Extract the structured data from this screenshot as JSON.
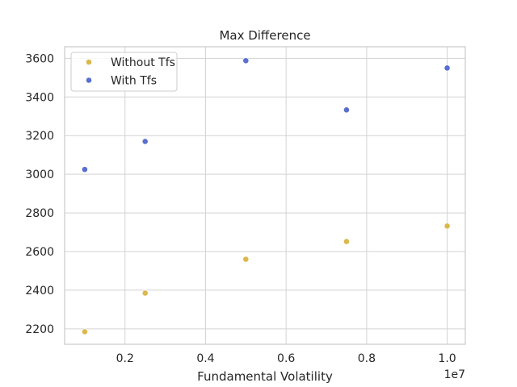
{
  "chart_data": {
    "type": "scatter",
    "title": "Max Difference",
    "xlabel": "Fundamental Volatility",
    "ylabel": "",
    "x_offset_text": "1e7",
    "xlim": [
      500000,
      10450000
    ],
    "ylim": [
      2120,
      3660
    ],
    "x_ticks": [
      2000000,
      4000000,
      6000000,
      8000000,
      10000000
    ],
    "x_tick_labels": [
      "0.2",
      "0.4",
      "0.6",
      "0.8",
      "1.0"
    ],
    "y_ticks": [
      2200,
      2400,
      2600,
      2800,
      3000,
      3200,
      3400,
      3600
    ],
    "y_tick_labels": [
      "2200",
      "2400",
      "2600",
      "2800",
      "3000",
      "3200",
      "3400",
      "3600"
    ],
    "grid": true,
    "legend_position": "top-left",
    "series": [
      {
        "name": "Without Tfs",
        "color": "#dbb84d",
        "x": [
          1000000,
          2500000,
          5000000,
          7500000,
          10000000
        ],
        "y": [
          2185,
          2385,
          2560,
          2652,
          2732
        ]
      },
      {
        "name": "With Tfs",
        "color": "#5a6fd0",
        "x": [
          1000000,
          2500000,
          5000000,
          7500000,
          10000000
        ],
        "y": [
          3025,
          3170,
          3588,
          3333,
          3550
        ]
      }
    ]
  }
}
